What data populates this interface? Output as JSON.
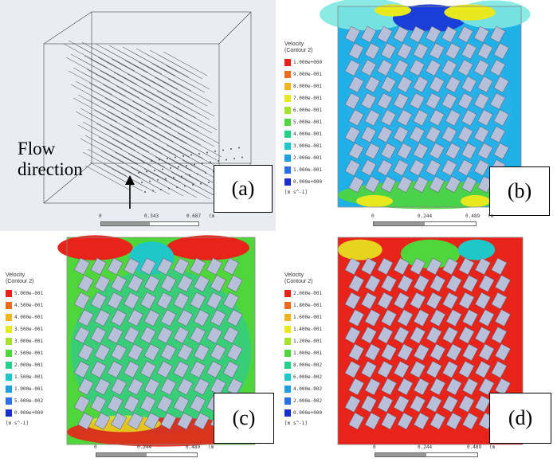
{
  "panel_a": {
    "flow_label_line1": "Flow",
    "flow_label_line2": "direction",
    "panel_label": "(a)",
    "scale": {
      "v0": "0",
      "v1": "0.343",
      "v2": "0.687",
      "unit": "(m"
    }
  },
  "panel_b": {
    "panel_label": "(b)",
    "legend": {
      "title1": "Velocity",
      "title2": "Contour 2",
      "values": [
        "1.000e+000",
        "9.000e-001",
        "8.000e-001",
        "7.000e-001",
        "6.000e-001",
        "5.000e-001",
        "4.000e-001",
        "3.000e-001",
        "2.000e-001",
        "1.000e-001",
        "0.000e+000"
      ],
      "unit": "[m s^-1]"
    },
    "scale": {
      "v0": "0",
      "v1": "0.244",
      "v2": "0.489",
      "unit": "(m"
    }
  },
  "panel_c": {
    "panel_label": "(c)",
    "legend": {
      "title1": "Velocity",
      "title2": "Contour 2",
      "values": [
        "5.000e-001",
        "4.500e-001",
        "4.000e-001",
        "3.500e-001",
        "3.000e-001",
        "2.500e-001",
        "2.000e-001",
        "1.500e-001",
        "1.000e-001",
        "5.000e-002",
        "0.000e+000"
      ],
      "unit": "[m s^-1]"
    },
    "scale": {
      "v0": "0",
      "v1": "0.244",
      "v2": "0.489",
      "unit": "(m"
    }
  },
  "panel_d": {
    "panel_label": "(d)",
    "legend": {
      "title1": "Velocity",
      "title2": "Contour 2",
      "values": [
        "2.000e-001",
        "1.800e-001",
        "1.600e-001",
        "1.400e-001",
        "1.200e-001",
        "1.000e-001",
        "8.000e-002",
        "6.000e-002",
        "4.000e-002",
        "2.000e-002",
        "0.000e+000"
      ],
      "unit": "[m s^-1]"
    },
    "scale": {
      "v0": "0",
      "v1": "0.244",
      "v2": "0.489",
      "unit": "(m"
    }
  },
  "colors": {
    "legend_ramp": [
      "#e8231a",
      "#f06a1c",
      "#f2b320",
      "#e8e81f",
      "#a6e22a",
      "#4fd63a",
      "#24d08a",
      "#1fc8c8",
      "#1ea0e0",
      "#2a6ee8",
      "#1a2ecc"
    ],
    "tile": "#b8bfd8",
    "tile_edge": "#5c6178"
  }
}
